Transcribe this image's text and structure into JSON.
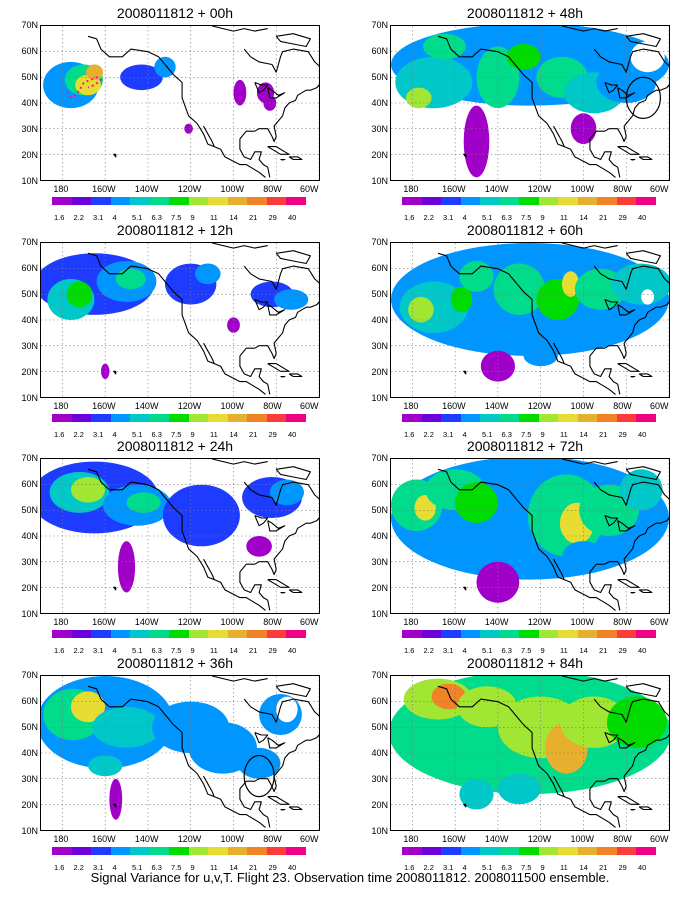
{
  "caption": "Signal Variance for u,v,T. Flight 23. Observation time 2008011812. 2008011500 ensemble.",
  "y_ticks": [
    "70N",
    "60N",
    "50N",
    "40N",
    "30N",
    "20N",
    "10N"
  ],
  "x_ticks": [
    "180",
    "160W",
    "140W",
    "120W",
    "100W",
    "80W",
    "60W"
  ],
  "colorbar": {
    "colors": [
      "#a000c8",
      "#6e00dc",
      "#1e3cff",
      "#0096ff",
      "#00c8c8",
      "#00dc8c",
      "#00dc00",
      "#a0e632",
      "#e6dc32",
      "#e6af2d",
      "#f08228",
      "#fa3c3c",
      "#f00082"
    ],
    "labels": [
      "1.6",
      "2.2",
      "3.1",
      "4",
      "5.1",
      "6.3",
      "7.5",
      "9",
      "11",
      "14",
      "21",
      "29",
      "40"
    ]
  },
  "panels": [
    {
      "id": "p00",
      "title": "2008011812 + 00h",
      "intensity": 0.2
    },
    {
      "id": "p48",
      "title": "2008011812 + 48h",
      "intensity": 0.6
    },
    {
      "id": "p12",
      "title": "2008011812 + 12h",
      "intensity": 0.3
    },
    {
      "id": "p60",
      "title": "2008011812 + 60h",
      "intensity": 0.7
    },
    {
      "id": "p24",
      "title": "2008011812 + 24h",
      "intensity": 0.4
    },
    {
      "id": "p72",
      "title": "2008011812 + 72h",
      "intensity": 0.8
    },
    {
      "id": "p36",
      "title": "2008011812 + 36h",
      "intensity": 0.5
    },
    {
      "id": "p84",
      "title": "2008011812 + 84h",
      "intensity": 0.9
    }
  ]
}
